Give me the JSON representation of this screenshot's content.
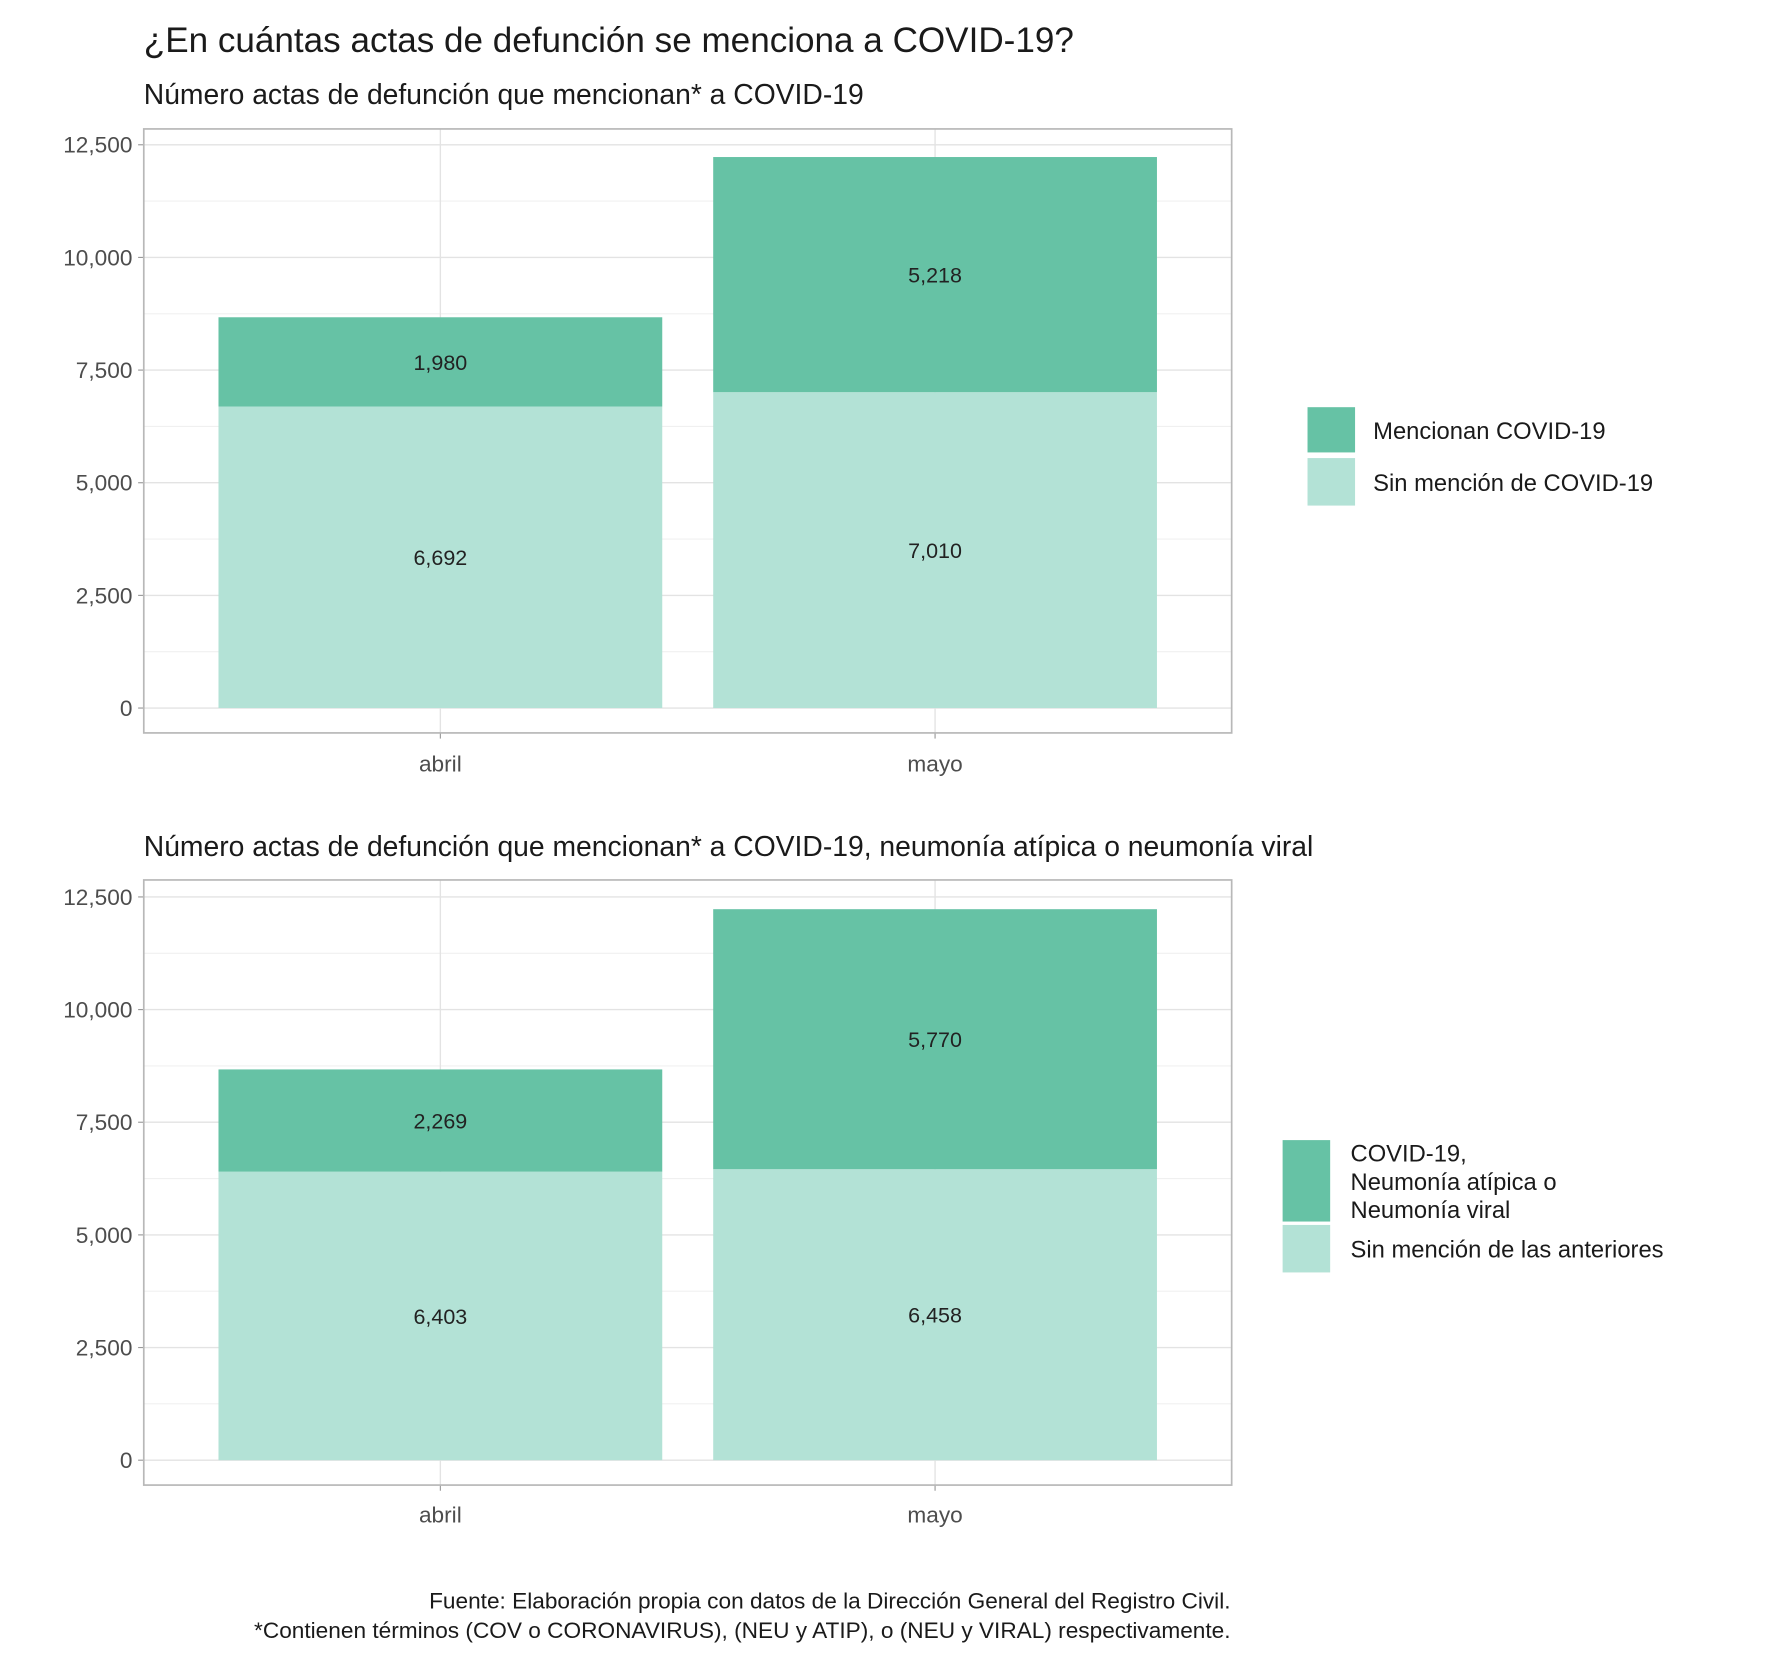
{
  "title": "¿En cuántas actas de defunción se menciona a COVID-19?",
  "caption": [
    "Fuente: Elaboración propia con datos de la Dirección General del Registro Civil.",
    "*Contienen términos (COV o CORONAVIRUS), (NEU y ATIP), o (NEU y VIRAL) respectivamente."
  ],
  "colors": {
    "dark": "#66c2a5",
    "light": "#b3e2d6"
  },
  "chart_data": [
    {
      "type": "bar",
      "stacked": true,
      "subtitle": "Número actas de defunción que mencionan* a COVID-19",
      "categories": [
        "abril",
        "mayo"
      ],
      "ylim": [
        0,
        12500
      ],
      "yticks": [
        0,
        2500,
        5000,
        7500,
        10000,
        12500
      ],
      "ytick_labels": [
        "0",
        "2,500",
        "5,000",
        "7,500",
        "10,000",
        "12,500"
      ],
      "grid": true,
      "legend_position": "right",
      "series": [
        {
          "name": "Sin mención de COVID-19",
          "values": [
            6692,
            7010
          ],
          "labels": [
            "6,692",
            "7,010"
          ],
          "color": "#b3e2d6"
        },
        {
          "name": "Mencionan COVID-19",
          "values": [
            1980,
            5218
          ],
          "labels": [
            "1,980",
            "5,218"
          ],
          "color": "#66c2a5"
        }
      ]
    },
    {
      "type": "bar",
      "stacked": true,
      "subtitle": "Número actas de defunción que mencionan* a COVID-19, neumonía atípica o neumonía viral",
      "categories": [
        "abril",
        "mayo"
      ],
      "ylim": [
        0,
        12500
      ],
      "yticks": [
        0,
        2500,
        5000,
        7500,
        10000,
        12500
      ],
      "ytick_labels": [
        "0",
        "2,500",
        "5,000",
        "7,500",
        "10,000",
        "12,500"
      ],
      "grid": true,
      "legend_position": "right",
      "series": [
        {
          "name": "Sin mención de las anteriores",
          "values": [
            6403,
            6458
          ],
          "labels": [
            "6,403",
            "6,458"
          ],
          "color": "#b3e2d6"
        },
        {
          "name": "COVID-19,\nNeumonía atípica o\nNeumonía viral",
          "values": [
            2269,
            5770
          ],
          "labels": [
            "2,269",
            "5,770"
          ],
          "color": "#66c2a5"
        }
      ]
    }
  ]
}
